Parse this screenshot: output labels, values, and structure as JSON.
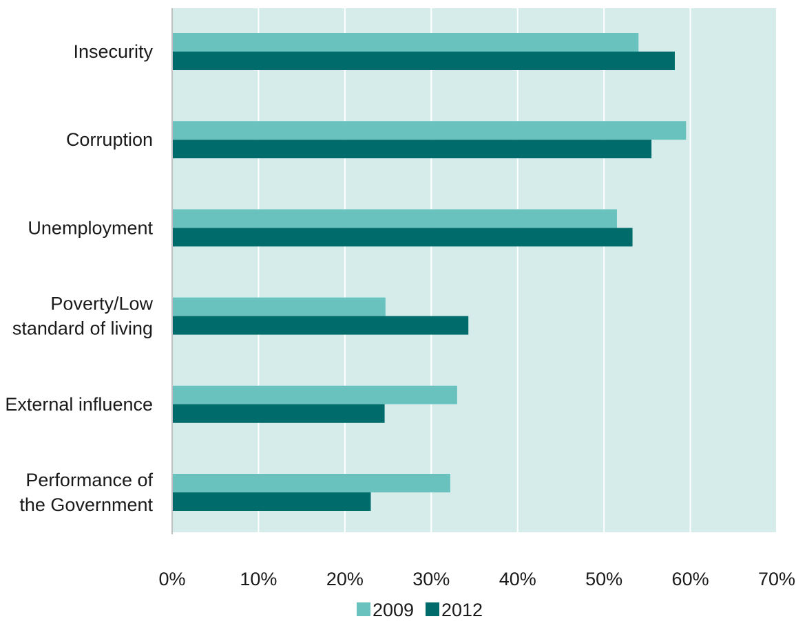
{
  "chart_data": {
    "type": "bar",
    "orientation": "horizontal",
    "categories": [
      [
        "Insecurity"
      ],
      [
        "Corruption"
      ],
      [
        "Unemployment"
      ],
      [
        "Poverty/Low",
        "standard of living"
      ],
      [
        "External influence"
      ],
      [
        "Performance of",
        "the Government"
      ]
    ],
    "series": [
      {
        "name": "2009",
        "color": "#6ac2be",
        "values": [
          54,
          59.5,
          51.5,
          24.7,
          33,
          32.2
        ]
      },
      {
        "name": "2012",
        "color": "#006b6b",
        "values": [
          58.2,
          55.5,
          53.3,
          34.3,
          24.6,
          23
        ]
      }
    ],
    "x_ticks": [
      "0%",
      "10%",
      "20%",
      "30%",
      "40%",
      "50%",
      "60%",
      "70%"
    ],
    "xlim": [
      0,
      70
    ],
    "grid": true,
    "plot_background": "#d6ecea",
    "gridline_color": "#ffffff",
    "legend_position": "bottom"
  }
}
